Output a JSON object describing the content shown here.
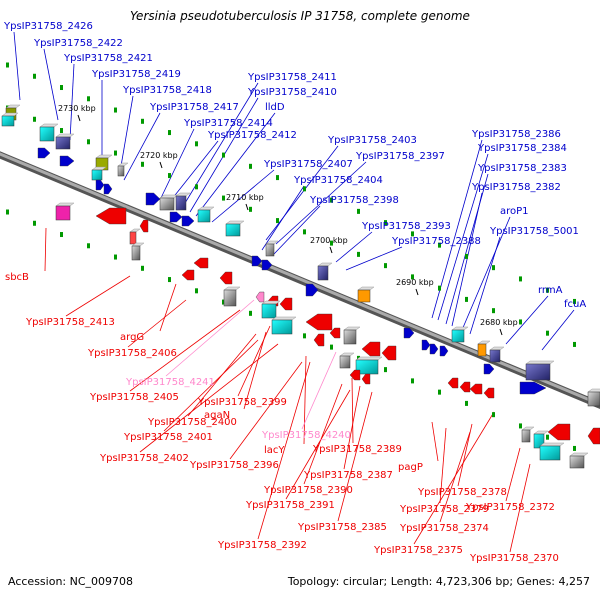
{
  "title": "Yersinia pseudotuberculosis IP 31758, complete genome",
  "footer": {
    "accession": "Accession: NC_009708",
    "stats": "Topology: circular; Length: 4,723,306 bp; Genes: 4,257"
  },
  "colors": {
    "forward": "#0000cc",
    "reverse": "#ee0000",
    "pseudo": "#ff88cc",
    "backbone": "#888888",
    "tick": "#009900"
  },
  "position_markers": [
    "2730 kbp",
    "2720 kbp",
    "2710 kbp",
    "2700 kbp",
    "2690 kbp",
    "2680 kbp"
  ],
  "forward_labels": [
    "YpsIP31758_2426",
    "YpsIP31758_2422",
    "YpsIP31758_2421",
    "YpsIP31758_2419",
    "YpsIP31758_2418",
    "YpsIP31758_2417",
    "YpsIP31758_2414",
    "YpsIP31758_2412",
    "YpsIP31758_2411",
    "YpsIP31758_2410",
    "lldD",
    "YpsIP31758_2403",
    "YpsIP31758_2397",
    "YpsIP31758_2407",
    "YpsIP31758_2404",
    "YpsIP31758_2398",
    "YpsIP31758_2393",
    "YpsIP31758_2388",
    "YpsIP31758_2386",
    "YpsIP31758_2384",
    "YpsIP31758_2383",
    "YpsIP31758_2382",
    "aroP1",
    "YpsIP31758_5001",
    "rrmA",
    "fcuA"
  ],
  "reverse_labels": [
    "sbcB",
    "YpsIP31758_2413",
    "argG",
    "YpsIP31758_2406",
    "YpsIP31758_4241",
    "YpsIP31758_2405",
    "YpsIP31758_2399",
    "agaN",
    "YpsIP31758_2400",
    "YpsIP31758_2401",
    "lacY",
    "YpsIP31758_4240",
    "YpsIP31758_2402",
    "YpsIP31758_2396",
    "YpsIP31758_2389",
    "YpsIP31758_2387",
    "YpsIP31758_2390",
    "YpsIP31758_2391",
    "pagP",
    "YpsIP31758_2378",
    "YpsIP31758_2379",
    "YpsIP31758_2372",
    "YpsIP31758_2385",
    "YpsIP31758_2374",
    "YpsIP31758_2392",
    "YpsIP31758_2375",
    "YpsIP31758_2370"
  ]
}
